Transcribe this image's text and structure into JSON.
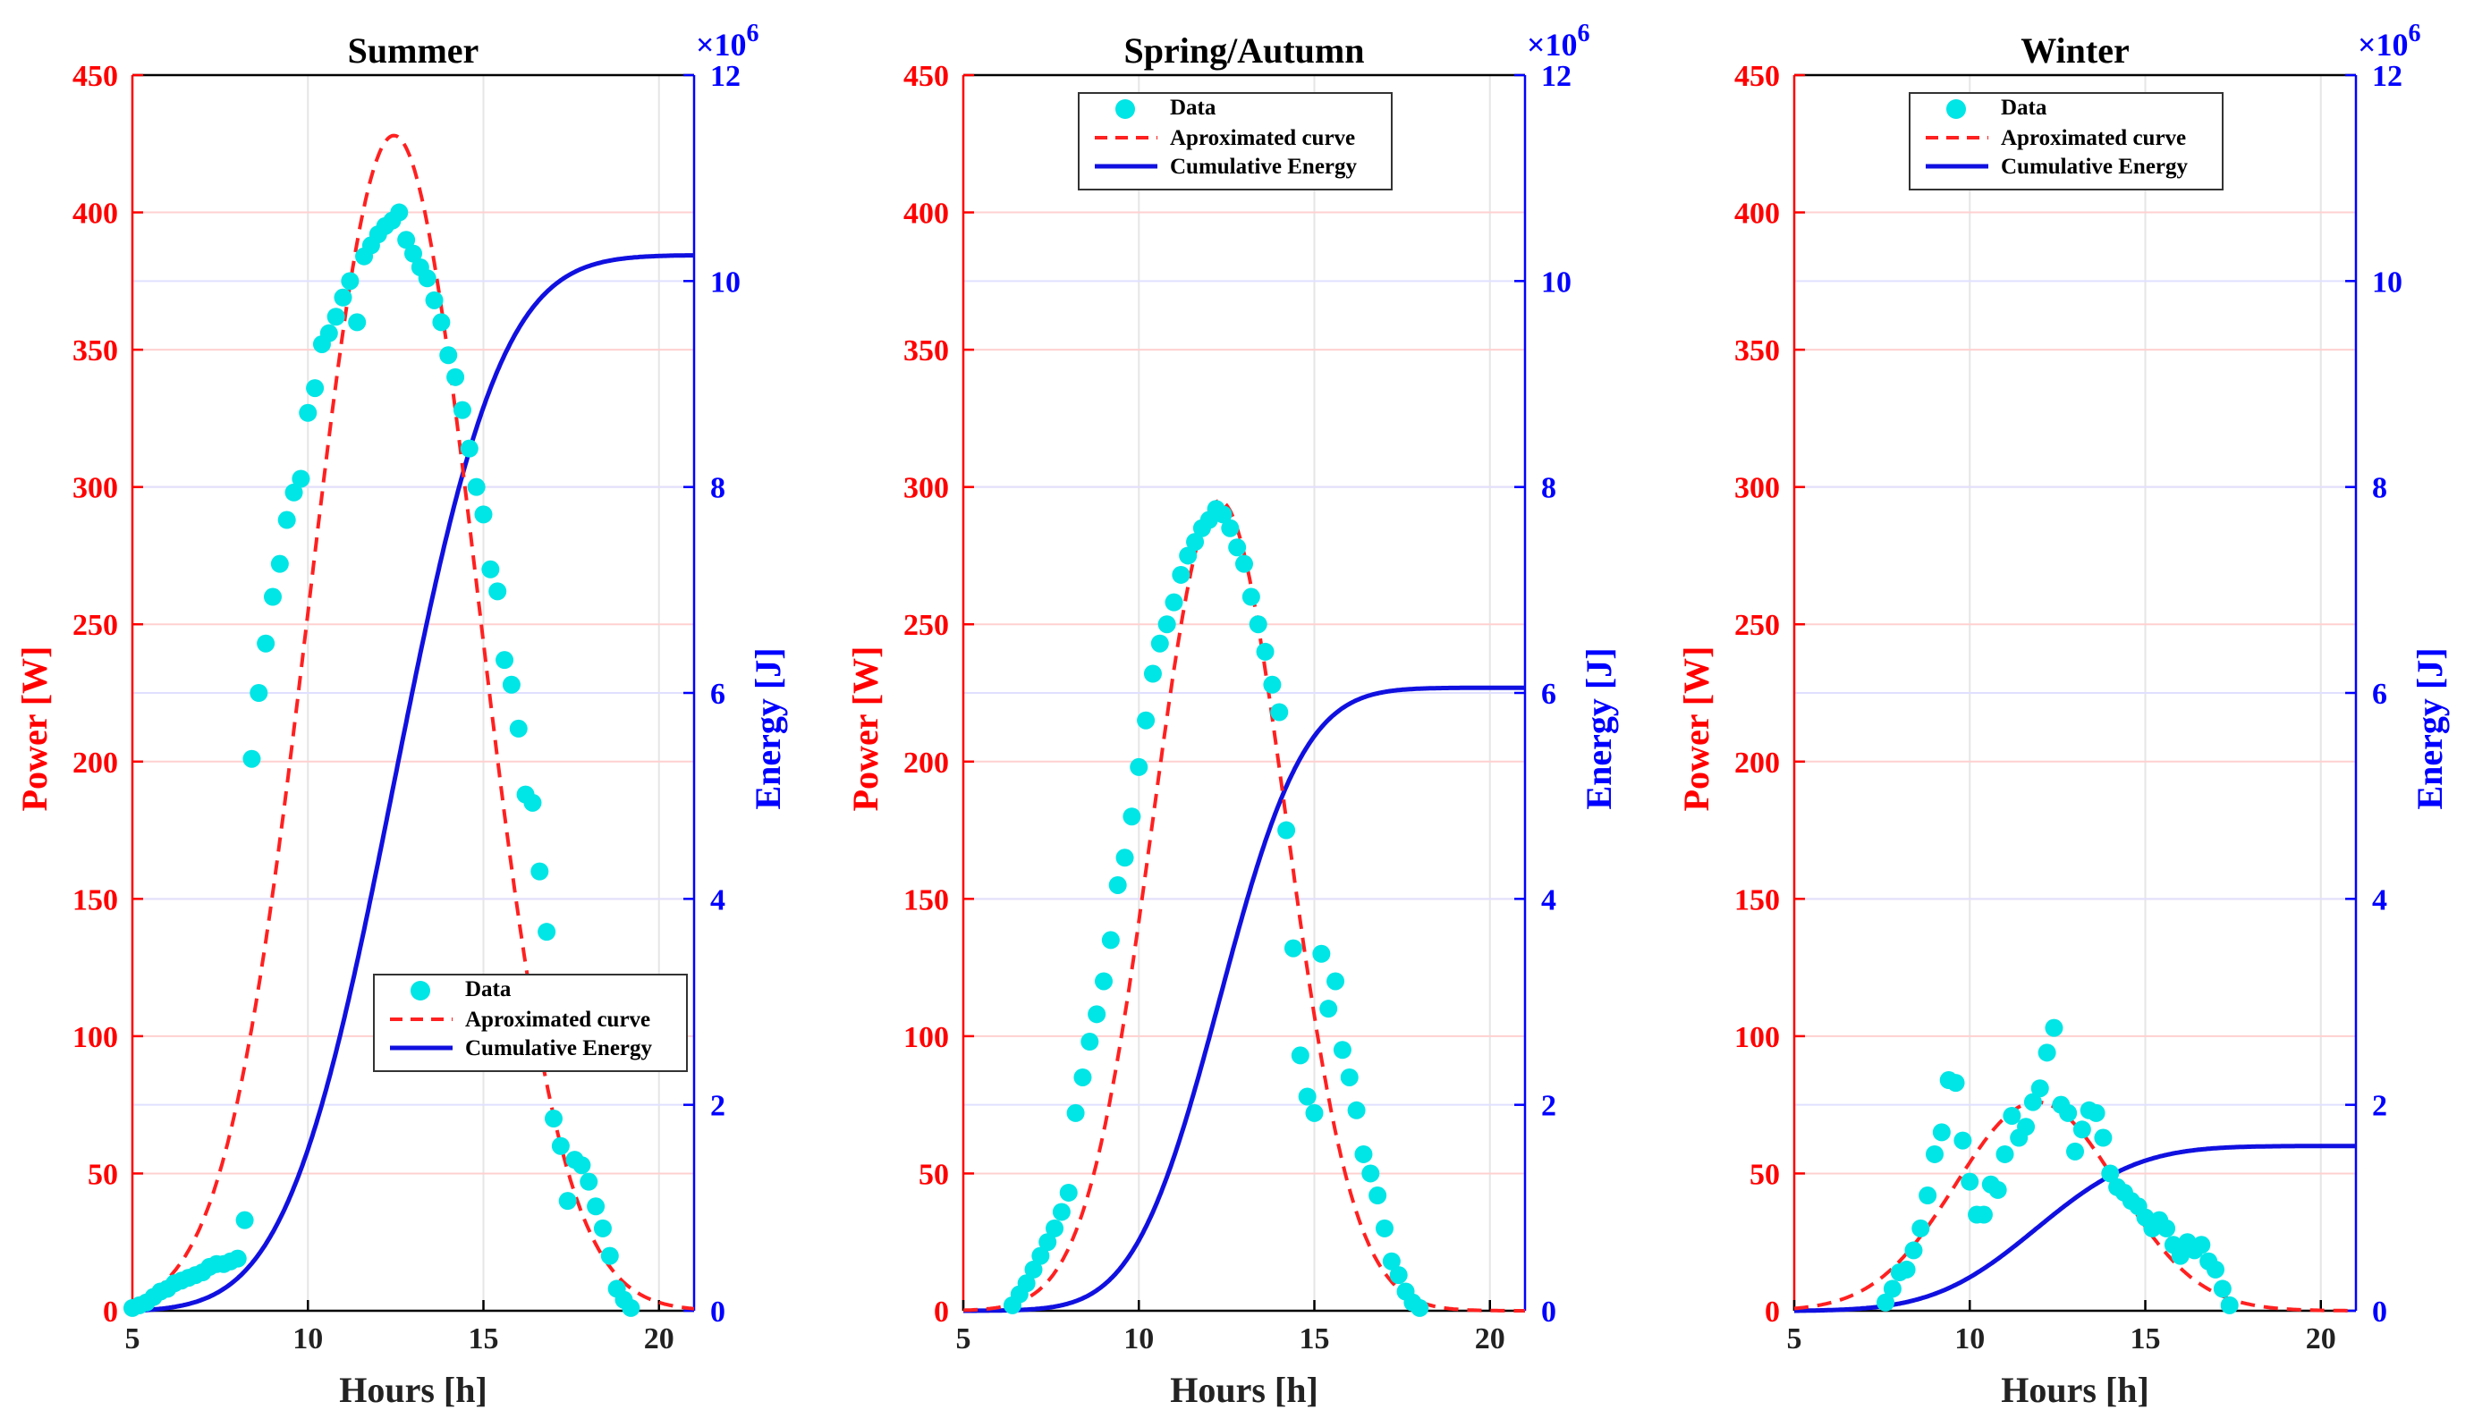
{
  "colors": {
    "power_axis": "#ff0000",
    "energy_axis": "#0000ff",
    "data_marker": "#00e5e5",
    "approx_curve": "#ff2020",
    "cumulative": "#1010e0",
    "grid_pink": "#ffd0d0",
    "grid_gray": "#e6e6e6"
  },
  "chart_data": [
    {
      "type": "scatter+line",
      "title": "Summer",
      "xlabel": "Hours [h]",
      "ylabel_left": "Power [W]",
      "ylabel_right": "Energy [J]",
      "right_exponent_base": "×10",
      "right_exponent_power": "6",
      "xlim": [
        5,
        21
      ],
      "ylim_left": [
        0,
        450
      ],
      "ylim_right": [
        0,
        12
      ],
      "xticks": [
        5,
        10,
        15,
        20
      ],
      "yticks_left": [
        0,
        50,
        100,
        150,
        200,
        250,
        300,
        350,
        400,
        450
      ],
      "yticks_right": [
        0,
        2,
        4,
        6,
        8,
        10,
        12
      ],
      "legend": {
        "placement": "bottom-right",
        "entries": [
          "Data",
          "Aproximated curve",
          "Cumulative Energy"
        ]
      },
      "series": [
        {
          "name": "Data",
          "kind": "scatter",
          "x": [
            5.0,
            5.2,
            5.4,
            5.6,
            5.8,
            6.0,
            6.2,
            6.4,
            6.6,
            6.8,
            7.0,
            7.2,
            7.4,
            7.6,
            7.8,
            8.0,
            8.2,
            8.4,
            8.6,
            8.8,
            9.0,
            9.2,
            9.4,
            9.6,
            9.8,
            10.0,
            10.2,
            10.4,
            10.6,
            10.8,
            11.0,
            11.2,
            11.4,
            11.6,
            11.8,
            12.0,
            12.2,
            12.4,
            12.6,
            12.8,
            13.0,
            13.2,
            13.4,
            13.6,
            13.8,
            14.0,
            14.2,
            14.4,
            14.6,
            14.8,
            15.0,
            15.2,
            15.4,
            15.6,
            15.8,
            16.0,
            16.2,
            16.4,
            16.6,
            16.8,
            17.0,
            17.2,
            17.4,
            17.6,
            17.8,
            18.0,
            18.2,
            18.4,
            18.6,
            18.8,
            19.0,
            19.2
          ],
          "y": [
            1,
            2,
            3,
            5,
            7,
            8,
            10,
            11,
            12,
            13,
            14,
            16,
            17,
            17,
            18,
            19,
            33,
            201,
            225,
            243,
            260,
            272,
            288,
            298,
            303,
            327,
            336,
            352,
            356,
            362,
            369,
            375,
            360,
            384,
            388,
            392,
            395,
            397,
            400,
            390,
            385,
            380,
            376,
            368,
            360,
            348,
            340,
            328,
            314,
            300,
            290,
            270,
            262,
            237,
            228,
            212,
            188,
            185,
            160,
            138,
            70,
            60,
            40,
            55,
            53,
            47,
            38,
            30,
            20,
            8,
            4,
            1
          ]
        },
        {
          "name": "Aproximated curve",
          "kind": "gaussian",
          "amplitude": 428,
          "center": 12.45,
          "sigma": 2.4
        },
        {
          "name": "Cumulative Energy",
          "kind": "cumulative",
          "final_value": 10.25
        }
      ]
    },
    {
      "type": "scatter+line",
      "title": "Spring/Autumn",
      "xlabel": "Hours [h]",
      "ylabel_left": "Power [W]",
      "ylabel_right": "Energy [J]",
      "right_exponent_base": "×10",
      "right_exponent_power": "6",
      "xlim": [
        5,
        21
      ],
      "ylim_left": [
        0,
        450
      ],
      "ylim_right": [
        0,
        12
      ],
      "xticks": [
        5,
        10,
        15,
        20
      ],
      "yticks_left": [
        0,
        50,
        100,
        150,
        200,
        250,
        300,
        350,
        400,
        450
      ],
      "yticks_right": [
        0,
        2,
        4,
        6,
        8,
        10,
        12
      ],
      "legend": {
        "placement": "top-center",
        "entries": [
          "Data",
          "Aproximated curve",
          "Cumulative Energy"
        ]
      },
      "series": [
        {
          "name": "Data",
          "kind": "scatter",
          "x": [
            6.4,
            6.6,
            6.8,
            7.0,
            7.2,
            7.4,
            7.6,
            7.8,
            8.0,
            8.2,
            8.4,
            8.6,
            8.8,
            9.0,
            9.2,
            9.4,
            9.6,
            9.8,
            10.0,
            10.2,
            10.4,
            10.6,
            10.8,
            11.0,
            11.2,
            11.4,
            11.6,
            11.8,
            12.0,
            12.2,
            12.4,
            12.6,
            12.8,
            13.0,
            13.2,
            13.4,
            13.6,
            13.8,
            14.0,
            14.2,
            14.4,
            14.6,
            14.8,
            15.0,
            15.2,
            15.4,
            15.6,
            15.8,
            16.0,
            16.2,
            16.4,
            16.6,
            16.8,
            17.0,
            17.2,
            17.4,
            17.6,
            17.8,
            18.0
          ],
          "y": [
            2,
            6,
            10,
            15,
            20,
            25,
            30,
            36,
            43,
            72,
            85,
            98,
            108,
            120,
            135,
            155,
            165,
            180,
            198,
            215,
            232,
            243,
            250,
            258,
            268,
            275,
            280,
            285,
            288,
            292,
            290,
            285,
            278,
            272,
            260,
            250,
            240,
            228,
            218,
            175,
            132,
            93,
            78,
            72,
            130,
            110,
            120,
            95,
            85,
            73,
            57,
            50,
            42,
            30,
            18,
            13,
            7,
            3,
            1
          ]
        },
        {
          "name": "Aproximated curve",
          "kind": "gaussian",
          "amplitude": 295,
          "center": 12.3,
          "sigma": 1.9
        },
        {
          "name": "Cumulative Energy",
          "kind": "cumulative",
          "final_value": 6.05
        }
      ]
    },
    {
      "type": "scatter+line",
      "title": "Winter",
      "xlabel": "Hours [h]",
      "ylabel_left": "Power [W]",
      "ylabel_right": "Energy [J]",
      "right_exponent_base": "×10",
      "right_exponent_power": "6",
      "xlim": [
        5,
        21
      ],
      "ylim_left": [
        0,
        450
      ],
      "ylim_right": [
        0,
        12
      ],
      "xticks": [
        5,
        10,
        15,
        20
      ],
      "yticks_left": [
        0,
        50,
        100,
        150,
        200,
        250,
        300,
        350,
        400,
        450
      ],
      "yticks_right": [
        0,
        2,
        4,
        6,
        8,
        10,
        12
      ],
      "legend": {
        "placement": "top-center",
        "entries": [
          "Data",
          "Aproximated curve",
          "Cumulative Energy"
        ]
      },
      "series": [
        {
          "name": "Data",
          "kind": "scatter",
          "x": [
            7.6,
            7.8,
            8.0,
            8.2,
            8.4,
            8.6,
            8.8,
            9.0,
            9.2,
            9.4,
            9.6,
            9.8,
            10.0,
            10.2,
            10.4,
            10.6,
            10.8,
            11.0,
            11.2,
            11.4,
            11.6,
            11.8,
            12.0,
            12.2,
            12.4,
            12.6,
            12.8,
            13.0,
            13.2,
            13.4,
            13.6,
            13.8,
            14.0,
            14.2,
            14.4,
            14.6,
            14.8,
            15.0,
            15.2,
            15.4,
            15.6,
            15.8,
            16.0,
            16.2,
            16.4,
            16.6,
            16.8,
            17.0,
            17.2,
            17.4
          ],
          "y": [
            3,
            8,
            14,
            15,
            22,
            30,
            42,
            57,
            65,
            84,
            83,
            62,
            47,
            35,
            35,
            46,
            44,
            57,
            71,
            63,
            67,
            76,
            81,
            94,
            103,
            75,
            72,
            58,
            66,
            73,
            72,
            63,
            50,
            45,
            43,
            40,
            38,
            34,
            30,
            33,
            30,
            24,
            20,
            25,
            22,
            24,
            18,
            15,
            8,
            2
          ]
        },
        {
          "name": "Aproximated curve",
          "kind": "gaussian",
          "amplitude": 76,
          "center": 11.9,
          "sigma": 2.3
        },
        {
          "name": "Cumulative Energy",
          "kind": "cumulative",
          "final_value": 1.6
        }
      ]
    }
  ]
}
